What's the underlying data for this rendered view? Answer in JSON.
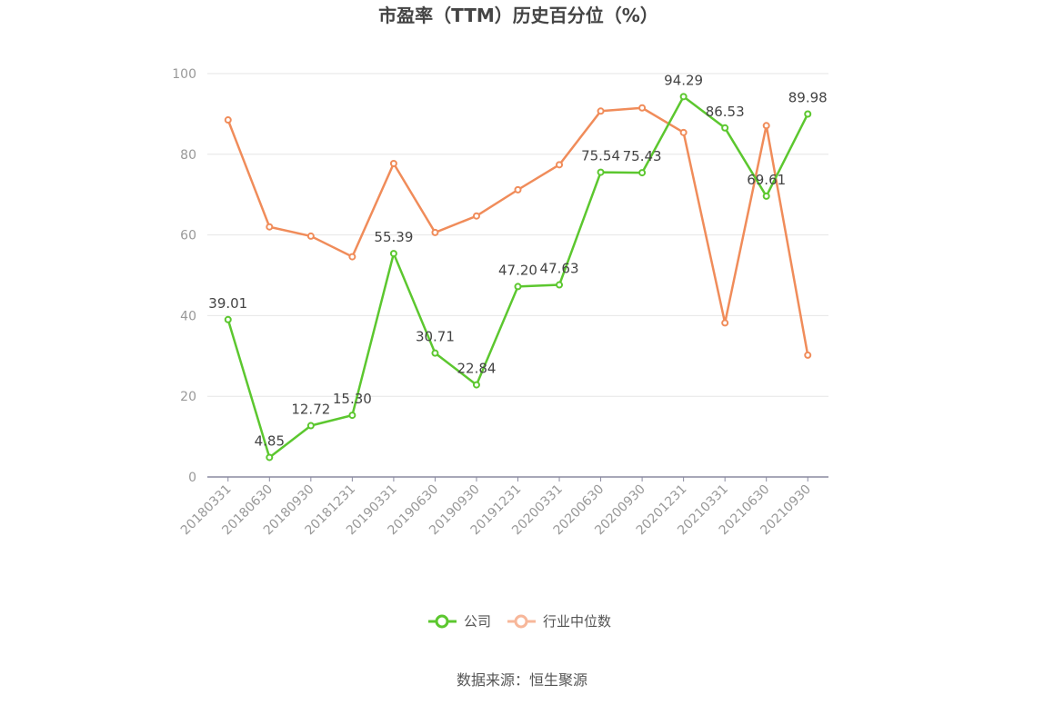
{
  "chart_data": {
    "type": "line",
    "title": "市盈率（TTM）历史百分位（%）",
    "categories": [
      "20180331",
      "20180630",
      "20180930",
      "20181231",
      "20190331",
      "20190630",
      "20190930",
      "20191231",
      "20200331",
      "20200630",
      "20200930",
      "20201231",
      "20210331",
      "20210630",
      "20210930"
    ],
    "ylim": [
      0,
      100
    ],
    "yticks": [
      0,
      20,
      40,
      60,
      80,
      100
    ],
    "grid": true,
    "legend_position": "bottom",
    "series": [
      {
        "name": "公司",
        "color": "#5cc72f",
        "values": [
          39.01,
          4.85,
          12.72,
          15.3,
          55.39,
          30.71,
          22.84,
          47.2,
          47.63,
          75.54,
          75.43,
          94.29,
          86.53,
          69.61,
          89.98
        ],
        "labels": [
          "39.01",
          "4.85",
          "12.72",
          "15.30",
          "55.39",
          "30.71",
          "22.84",
          "47.20",
          "47.63",
          "75.54",
          "75.43",
          "94.29",
          "86.53",
          "69.61",
          "89.98"
        ]
      },
      {
        "name": "行业中位数",
        "color": "#f08c5a",
        "values": [
          88.5,
          62.0,
          59.7,
          54.6,
          77.7,
          60.6,
          64.7,
          71.2,
          77.4,
          90.7,
          91.5,
          85.4,
          38.2,
          87.1,
          30.2
        ]
      }
    ]
  },
  "source_text": "数据来源：恒生聚源"
}
